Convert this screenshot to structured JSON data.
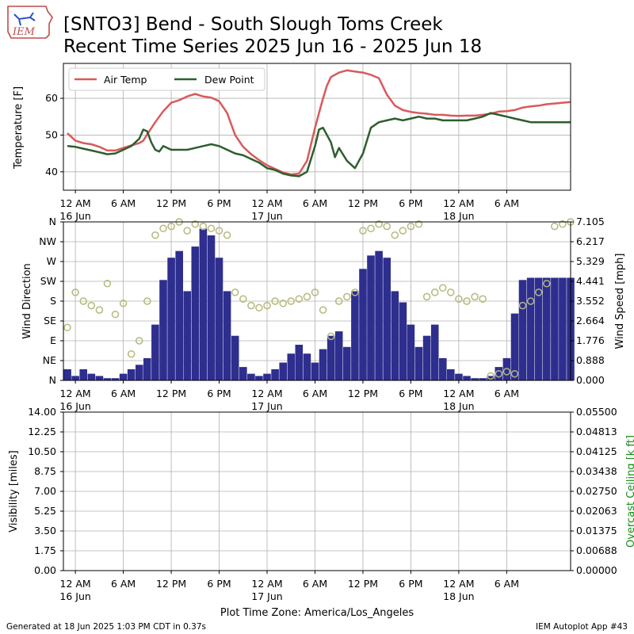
{
  "title_lines": [
    "[SNTO3] Bend - South Slough Toms Creek",
    "Recent Time Series 2025 Jun 16 - 2025 Jun 18"
  ],
  "logo": {
    "text": "IEM"
  },
  "footer": {
    "generated": "Generated at 18 Jun 2025 1:03 PM CDT in 0.37s",
    "app": "IEM Autoplot App #43"
  },
  "time_axis": {
    "labels": [
      [
        "12 AM",
        "16 Jun"
      ],
      [
        "6 AM",
        ""
      ],
      [
        "12 PM",
        ""
      ],
      [
        "6 PM",
        ""
      ],
      [
        "12 AM",
        "17 Jun"
      ],
      [
        "6 AM",
        ""
      ],
      [
        "12 PM",
        ""
      ],
      [
        "6 PM",
        ""
      ],
      [
        "12 AM",
        "18 Jun"
      ],
      [
        "6 AM",
        ""
      ]
    ],
    "xlabel": "Plot Time Zone: America/Los_Angeles"
  },
  "colors": {
    "air_temp": "#d9595c",
    "dew_point": "#2e5e2e",
    "wind_speed": "#2e2e8f",
    "wind_direction": "#b5b87a",
    "ceiling_label": "#1a8a1a",
    "grid": "#b0b0b0"
  },
  "chart_data": [
    {
      "type": "line",
      "ylabel": "Temperature [F]",
      "yticks": [
        40,
        50,
        60
      ],
      "ylim": [
        35,
        69.5
      ],
      "x_unit": "hours since 12 AM 16 Jun",
      "xlim": [
        -1.5,
        62
      ],
      "grid": true,
      "legend_position": "top-left",
      "series": [
        {
          "name": "Air Temp",
          "x": [
            -1,
            0,
            1,
            2,
            3,
            4,
            5,
            6,
            7,
            8,
            8.5,
            9,
            10,
            11,
            12,
            13,
            14,
            15,
            16,
            17,
            18,
            19,
            20,
            21,
            22,
            23,
            24,
            25,
            26,
            27,
            28,
            29,
            30,
            31,
            31.5,
            32,
            33,
            34,
            35,
            36,
            37,
            38,
            39,
            40,
            41,
            42,
            43,
            44,
            45,
            46,
            47,
            48,
            49,
            50,
            51,
            52,
            53,
            54,
            55,
            56,
            57,
            58,
            59,
            60,
            61,
            62
          ],
          "y": [
            50.5,
            48.5,
            47.8,
            47.5,
            46.8,
            45.8,
            45.8,
            46.5,
            47.2,
            47.8,
            48.5,
            50.2,
            53.5,
            56.5,
            58.8,
            59.5,
            60.5,
            61.2,
            60.5,
            60.2,
            59.2,
            56.0,
            50.0,
            46.8,
            44.8,
            43.2,
            41.8,
            40.8,
            39.8,
            39.3,
            39.5,
            43.0,
            52.0,
            60.0,
            63.5,
            65.8,
            67.0,
            67.6,
            67.3,
            67.0,
            66.4,
            65.5,
            61.0,
            58.0,
            56.8,
            56.3,
            56.0,
            55.8,
            55.5,
            55.5,
            55.3,
            55.2,
            55.3,
            55.3,
            55.5,
            55.8,
            56.4,
            56.5,
            56.8,
            57.5,
            57.8,
            58.0,
            58.4,
            58.6,
            58.8,
            59.0
          ]
        },
        {
          "name": "Dew Point",
          "x": [
            -1,
            0,
            1,
            2,
            3,
            4,
            5,
            6,
            7,
            8,
            8.5,
            9,
            9.5,
            10,
            10.5,
            11,
            12,
            13,
            14,
            15,
            16,
            17,
            18,
            19,
            20,
            21,
            22,
            23,
            24,
            25,
            26,
            27,
            28,
            29,
            30,
            30.5,
            31,
            32,
            32.5,
            33,
            34,
            35,
            36,
            37,
            38,
            39,
            40,
            41,
            42,
            43,
            44,
            45,
            46,
            47,
            48,
            49,
            50,
            51,
            52,
            53,
            54,
            55,
            56,
            57,
            58,
            59,
            60,
            61,
            62
          ],
          "y": [
            47.0,
            46.8,
            46.3,
            45.8,
            45.3,
            44.8,
            45.0,
            46.0,
            47.0,
            49.0,
            51.5,
            51.0,
            48.0,
            46.0,
            45.5,
            47.0,
            46.0,
            46.0,
            46.0,
            46.5,
            47.0,
            47.5,
            47.0,
            46.0,
            45.0,
            44.5,
            43.5,
            42.5,
            41.0,
            40.5,
            39.5,
            39.0,
            38.8,
            40.0,
            47.0,
            51.5,
            52.0,
            48.0,
            44.0,
            46.5,
            43.0,
            41.0,
            45.0,
            52.0,
            53.5,
            54.0,
            54.5,
            54.0,
            54.5,
            55.0,
            54.5,
            54.5,
            54.0,
            54.0,
            54.0,
            54.0,
            54.5,
            55.0,
            56.0,
            55.5,
            55.0,
            54.5,
            54.0,
            53.5,
            53.5,
            53.5,
            53.5,
            53.5,
            53.5
          ]
        }
      ]
    },
    {
      "type": "bar",
      "ylabel": "Wind Direction",
      "ylabel_right": "Wind Speed [mph]",
      "yticks_left": [
        "N",
        "NE",
        "E",
        "SE",
        "S",
        "SW",
        "W",
        "NW",
        "N"
      ],
      "yticks_right": [
        "0.000",
        "0.888",
        "1.776",
        "2.664",
        "3.552",
        "4.441",
        "5.329",
        "6.217",
        "7.105"
      ],
      "ylim_right": [
        0,
        7.105
      ],
      "xlim": [
        -1.5,
        62
      ],
      "grid": true,
      "wind_speed_mph": {
        "x": [
          -1,
          0,
          1,
          2,
          3,
          4,
          5,
          6,
          7,
          8,
          9,
          10,
          11,
          12,
          13,
          14,
          15,
          16,
          17,
          18,
          19,
          20,
          21,
          22,
          23,
          24,
          25,
          26,
          27,
          28,
          29,
          30,
          31,
          32,
          33,
          34,
          35,
          36,
          37,
          38,
          39,
          40,
          41,
          42,
          43,
          44,
          45,
          46,
          47,
          48,
          49,
          50,
          51,
          52,
          53,
          54,
          55,
          56,
          57,
          58,
          59,
          60,
          61,
          62
        ],
        "y": [
          0.5,
          0.2,
          0.5,
          0.3,
          0.2,
          0.1,
          0.1,
          0.3,
          0.5,
          0.7,
          1.0,
          2.5,
          4.5,
          5.5,
          5.8,
          4.0,
          6.0,
          6.8,
          6.5,
          5.5,
          4.0,
          2.0,
          0.6,
          0.3,
          0.2,
          0.3,
          0.5,
          0.8,
          1.2,
          1.6,
          1.2,
          0.8,
          1.4,
          2.0,
          2.2,
          1.5,
          4.0,
          5.0,
          5.6,
          5.8,
          5.5,
          4.0,
          3.5,
          2.5,
          1.5,
          2.0,
          2.5,
          1.0,
          0.5,
          0.3,
          0.2,
          0.1,
          0.1,
          0.2,
          0.6,
          1.0,
          3.0,
          4.5,
          4.6,
          4.6,
          4.6,
          4.6,
          4.6,
          4.6
        ]
      },
      "wind_direction": {
        "x": [
          -1,
          0,
          1,
          2,
          3,
          4,
          5,
          6,
          7,
          8,
          9,
          10,
          11,
          12,
          13,
          14,
          15,
          16,
          17,
          18,
          19,
          20,
          21,
          22,
          23,
          24,
          25,
          26,
          27,
          28,
          29,
          30,
          31,
          32,
          33,
          34,
          35,
          36,
          37,
          38,
          39,
          40,
          41,
          42,
          43,
          44,
          45,
          46,
          47,
          48,
          49,
          50,
          51,
          52,
          53,
          54,
          55,
          56,
          57,
          58,
          59,
          60,
          61,
          62
        ],
        "y": [
          120,
          200,
          180,
          170,
          160,
          220,
          150,
          175,
          60,
          90,
          180,
          330,
          345,
          350,
          360,
          340,
          355,
          350,
          345,
          340,
          330,
          200,
          185,
          170,
          165,
          170,
          180,
          175,
          180,
          185,
          190,
          200,
          160,
          100,
          180,
          190,
          200,
          340,
          345,
          355,
          350,
          330,
          340,
          350,
          355,
          190,
          200,
          210,
          200,
          185,
          180,
          190,
          185,
          10,
          15,
          20,
          15,
          170,
          180,
          200,
          220,
          350,
          355,
          360
        ]
      }
    },
    {
      "type": "line",
      "ylabel": "Visibility [miles]",
      "ylabel_right": "Overcast Ceiling [k ft]",
      "yticks_left": [
        "0.00",
        "1.75",
        "3.50",
        "5.25",
        "7.00",
        "8.75",
        "10.50",
        "12.25",
        "14.00"
      ],
      "yticks_right": [
        "0.00000",
        "0.00688",
        "0.01375",
        "0.02063",
        "0.02750",
        "0.03438",
        "0.04125",
        "0.04813",
        "0.05500"
      ],
      "ylim": [
        0,
        14
      ],
      "ylim_right": [
        0,
        0.055
      ],
      "xlim": [
        -1.5,
        62
      ],
      "grid": true,
      "series": []
    }
  ]
}
